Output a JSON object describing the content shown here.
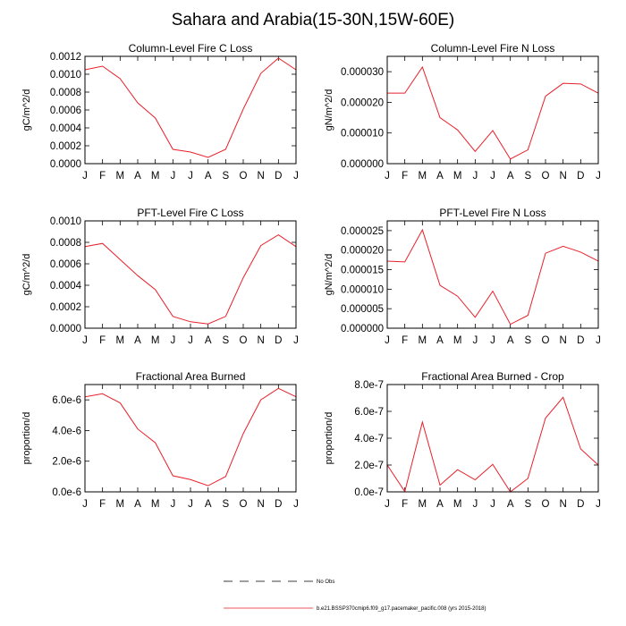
{
  "title": "Sahara and Arabia(15-30N,15W-60E)",
  "legend": {
    "obs_label": "No Obs",
    "model_label": "b.e21.BSSP370cmip6.f09_g17.pacemaker_pacific.008 (yrs 2015-2018)"
  },
  "colors": {
    "model": "#e8202a",
    "axis": "#000000",
    "obs": "#000000"
  },
  "chart_data": [
    {
      "type": "line",
      "title": "Column-Level Fire C Loss",
      "ylabel": "gC/m^2/d",
      "xlabel": "",
      "x": [
        "J",
        "F",
        "M",
        "A",
        "M",
        "J",
        "J",
        "A",
        "S",
        "O",
        "N",
        "D",
        "J"
      ],
      "ylim": [
        0,
        0.0012
      ],
      "yticks": [
        0,
        0.0002,
        0.0004,
        0.0006,
        0.0008,
        0.001,
        0.0012
      ],
      "yticklabels": [
        "0.0000",
        "0.0002",
        "0.0004",
        "0.0006",
        "0.0008",
        "0.0010",
        "0.0012"
      ],
      "series": [
        {
          "name": "b.e21.BSSP370cmip6.f09_g17.pacemaker_pacific.008 (yrs 2015-2018)",
          "values": [
            0.00105,
            0.00109,
            0.00095,
            0.00068,
            0.00051,
            0.00016,
            0.00013,
            7e-05,
            0.00016,
            0.00061,
            0.00101,
            0.00118,
            0.00105
          ]
        }
      ]
    },
    {
      "type": "line",
      "title": "Column-Level Fire N Loss",
      "ylabel": "gN/m^2/d",
      "xlabel": "",
      "x": [
        "J",
        "F",
        "M",
        "A",
        "M",
        "J",
        "J",
        "A",
        "S",
        "O",
        "N",
        "D",
        "J"
      ],
      "ylim": [
        0,
        3.5e-05
      ],
      "yticks": [
        0,
        1e-05,
        2e-05,
        3e-05
      ],
      "yticklabels": [
        "0.000000",
        "0.000010",
        "0.000020",
        "0.000030"
      ],
      "series": [
        {
          "name": "b.e21.BSSP370cmip6.f09_g17.pacemaker_pacific.008 (yrs 2015-2018)",
          "values": [
            2.3e-05,
            2.3e-05,
            3.15e-05,
            1.5e-05,
            1.1e-05,
            4e-06,
            1.08e-05,
            1.5e-06,
            4.5e-06,
            2.2e-05,
            2.62e-05,
            2.6e-05,
            2.3e-05
          ]
        }
      ]
    },
    {
      "type": "line",
      "title": "PFT-Level Fire C Loss",
      "ylabel": "gC/m^2/d",
      "xlabel": "",
      "x": [
        "J",
        "F",
        "M",
        "A",
        "M",
        "J",
        "J",
        "A",
        "S",
        "O",
        "N",
        "D",
        "J"
      ],
      "ylim": [
        0,
        0.001
      ],
      "yticks": [
        0,
        0.0002,
        0.0004,
        0.0006,
        0.0008,
        0.001
      ],
      "yticklabels": [
        "0.0000",
        "0.0002",
        "0.0004",
        "0.0006",
        "0.0008",
        "0.0010"
      ],
      "series": [
        {
          "name": "b.e21.BSSP370cmip6.f09_g17.pacemaker_pacific.008 (yrs 2015-2018)",
          "values": [
            0.00076,
            0.00079,
            0.00064,
            0.00049,
            0.00036,
            0.00011,
            6e-05,
            4e-05,
            0.00011,
            0.00047,
            0.00077,
            0.00087,
            0.00076
          ]
        }
      ]
    },
    {
      "type": "line",
      "title": "PFT-Level Fire N Loss",
      "ylabel": "gN/m^2/d",
      "xlabel": "",
      "x": [
        "J",
        "F",
        "M",
        "A",
        "M",
        "J",
        "J",
        "A",
        "S",
        "O",
        "N",
        "D",
        "J"
      ],
      "ylim": [
        0,
        2.75e-05
      ],
      "yticks": [
        0,
        5e-06,
        1e-05,
        1.5e-05,
        2e-05,
        2.5e-05
      ],
      "yticklabels": [
        "0.000000",
        "0.000005",
        "0.000010",
        "0.000015",
        "0.000020",
        "0.000025"
      ],
      "series": [
        {
          "name": "b.e21.BSSP370cmip6.f09_g17.pacemaker_pacific.008 (yrs 2015-2018)",
          "values": [
            1.72e-05,
            1.7e-05,
            2.52e-05,
            1.1e-05,
            8.2e-06,
            2.8e-06,
            9.5e-06,
            1e-06,
            3.3e-06,
            1.92e-05,
            2.1e-05,
            1.95e-05,
            1.72e-05
          ]
        }
      ]
    },
    {
      "type": "line",
      "title": "Fractional Area Burned",
      "ylabel": "proportion/d",
      "xlabel": "",
      "x": [
        "J",
        "F",
        "M",
        "A",
        "M",
        "J",
        "J",
        "A",
        "S",
        "O",
        "N",
        "D",
        "J"
      ],
      "ylim": [
        0,
        7e-06
      ],
      "yticks": [
        0,
        2e-06,
        4e-06,
        6e-06
      ],
      "yticklabels": [
        "0.0e-6",
        "2.0e-6",
        "4.0e-6",
        "6.0e-6"
      ],
      "series": [
        {
          "name": "b.e21.BSSP370cmip6.f09_g17.pacemaker_pacific.008 (yrs 2015-2018)",
          "values": [
            6.2e-06,
            6.4e-06,
            5.8e-06,
            4.1e-06,
            3.2e-06,
            1.05e-06,
            8e-07,
            4e-07,
            1e-06,
            3.8e-06,
            6e-06,
            6.75e-06,
            6.2e-06
          ]
        }
      ]
    },
    {
      "type": "line",
      "title": "Fractional Area Burned - Crop",
      "ylabel": "proportion/d",
      "xlabel": "",
      "x": [
        "J",
        "F",
        "M",
        "A",
        "M",
        "J",
        "J",
        "A",
        "S",
        "O",
        "N",
        "D",
        "J"
      ],
      "ylim": [
        0,
        8e-07
      ],
      "yticks": [
        0,
        2e-07,
        4e-07,
        6e-07,
        8e-07
      ],
      "yticklabels": [
        "0.0e-7",
        "2.0e-7",
        "4.0e-7",
        "6.0e-7",
        "8.0e-7"
      ],
      "series": [
        {
          "name": "b.e21.BSSP370cmip6.f09_g17.pacemaker_pacific.008 (yrs 2015-2018)",
          "values": [
            2e-07,
            2e-09,
            5.2e-07,
            5e-08,
            1.65e-07,
            9e-08,
            2.05e-07,
            0.0,
            1e-07,
            5.5e-07,
            7.05e-07,
            3.2e-07,
            2e-07
          ]
        }
      ]
    }
  ]
}
